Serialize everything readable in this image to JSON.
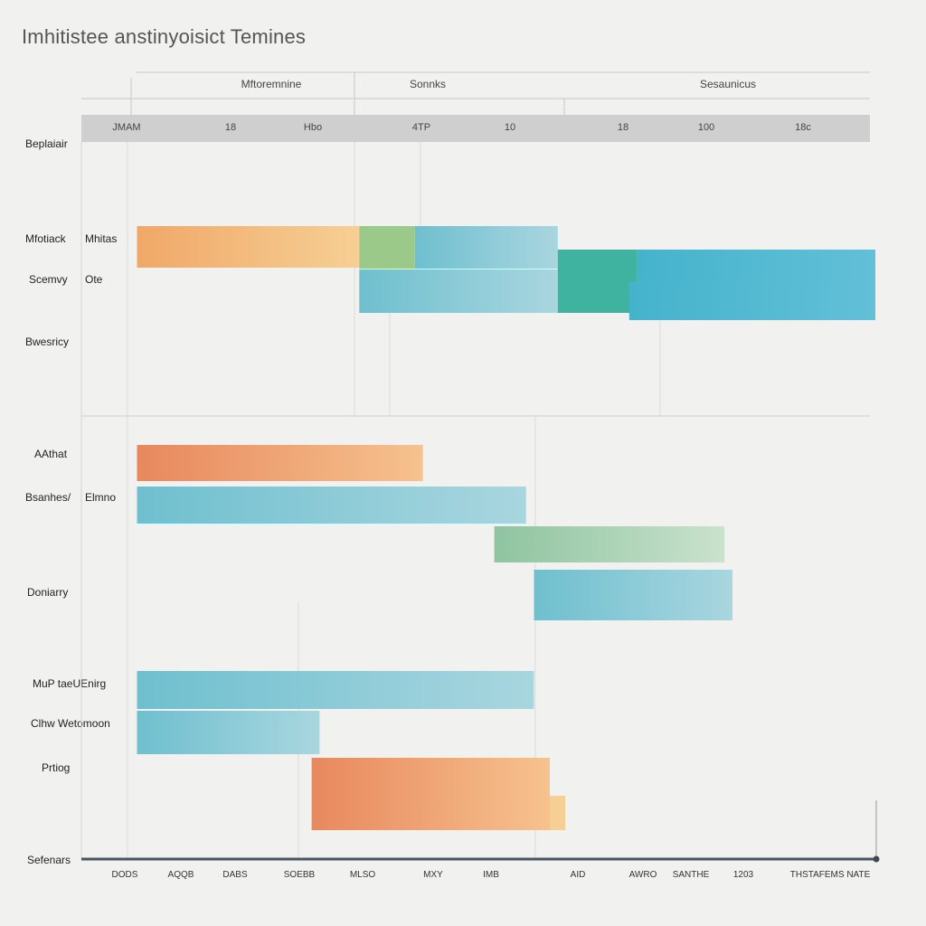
{
  "title": "Imhitistee anstinyoisict Temines",
  "header_groups": [
    "Mftoremnine",
    "Sonnks",
    "Sesaunicus"
  ],
  "top_ticks": [
    "JMAM",
    "18",
    "Hbo",
    "4TP",
    "10",
    "18",
    "100",
    "18c"
  ],
  "corner_label": "Beplaiair",
  "bottom_corner_label": "Sefenars",
  "bottom_ticks": [
    "DODS",
    "AQQB",
    "DABS",
    "SOEBB",
    "MLSO",
    "MXY",
    "IMB",
    "AID",
    "AWRO",
    "SANTHE",
    "1203",
    "THSTAFEMS NATE"
  ],
  "colors": {
    "orange_start": "#f0a868",
    "orange_end": "#f6cf94",
    "salmon_start": "#e8885e",
    "salmon_end": "#f6c28e",
    "green_start": "#9bc98a",
    "teal_start": "#6fbfcf",
    "teal_end": "#a9d6df",
    "deep_teal": "#3fb3a0",
    "cyan_start": "#45b3cc",
    "cyan_end": "#62c0d8",
    "sage_start": "#8fc4a0",
    "sage_end": "#c9e2cc"
  },
  "chart_data": {
    "type": "gantt",
    "title": "Imhitistee anstinyoisict Temines",
    "rows": [
      {
        "label": "Mfotiack",
        "sub": "Mhitas"
      },
      {
        "label": "Scemvy",
        "sub": "Ote"
      },
      {
        "label": "Bwesricy",
        "sub": ""
      },
      {
        "label": "AAthat",
        "sub": ""
      },
      {
        "label": "Bsanhes/",
        "sub": "Elmno"
      },
      {
        "label": "Doniarry",
        "sub": ""
      },
      {
        "label": "MuP taeUEnirg",
        "sub": ""
      },
      {
        "label": "Clhw Wetomoon",
        "sub": ""
      },
      {
        "label": "Prtiog",
        "sub": ""
      }
    ],
    "tasks": [
      {
        "row": 0,
        "start": 0.7,
        "end": 3.5,
        "color": "orange"
      },
      {
        "row": 0,
        "start": 3.5,
        "end": 4.2,
        "color": "green"
      },
      {
        "row": 0,
        "start": 4.2,
        "end": 6.0,
        "color": "teal"
      },
      {
        "row": 1,
        "start": 3.5,
        "end": 6.0,
        "color": "teal"
      },
      {
        "row": 1,
        "start": 6.0,
        "end": 7.0,
        "color": "deep_teal"
      },
      {
        "row": 1,
        "start": 7.0,
        "end": 10.0,
        "color": "cyan"
      },
      {
        "row": 2,
        "start": 6.9,
        "end": 10.0,
        "color": "cyan"
      },
      {
        "row": 3,
        "start": 0.7,
        "end": 4.3,
        "color": "salmon"
      },
      {
        "row": 4,
        "start": 0.7,
        "end": 5.6,
        "color": "teal"
      },
      {
        "row": 5,
        "start": 5.2,
        "end": 8.1,
        "color": "sage"
      },
      {
        "row": 5,
        "start": 5.7,
        "end": 8.2,
        "color": "teal"
      },
      {
        "row": 6,
        "start": 0.7,
        "end": 5.7,
        "color": "teal"
      },
      {
        "row": 7,
        "start": 0.7,
        "end": 3.0,
        "color": "teal"
      },
      {
        "row": 8,
        "start": 2.9,
        "end": 5.9,
        "color": "salmon"
      }
    ],
    "x_range": [
      0,
      10
    ]
  }
}
